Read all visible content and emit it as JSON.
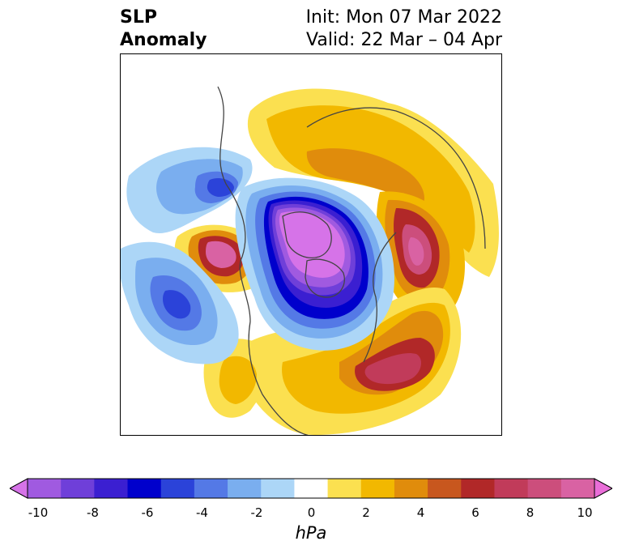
{
  "title": {
    "left_line1": "SLP",
    "left_line2": "Anomaly",
    "right_line1": "Init: Mon 07 Mar 2022",
    "right_line2": "Valid: 22 Mar – 04 Apr"
  },
  "colorbar": {
    "unit": "hPa",
    "tick_labels": [
      "-10",
      "-8",
      "-6",
      "-4",
      "-2",
      "0",
      "2",
      "4",
      "6",
      "8",
      "10"
    ],
    "colors": [
      "#d673e8",
      "#a05ae0",
      "#6f3fd9",
      "#3b1fd1",
      "#0000cc",
      "#2b43d9",
      "#5479e6",
      "#7aaeef",
      "#acd6f7",
      "#ffffff",
      "#fbe050",
      "#f2b800",
      "#e08c0c",
      "#c8571e",
      "#b12828",
      "#c13b5a",
      "#cc4e7c",
      "#d962a3",
      "#e96ed8"
    ]
  }
}
